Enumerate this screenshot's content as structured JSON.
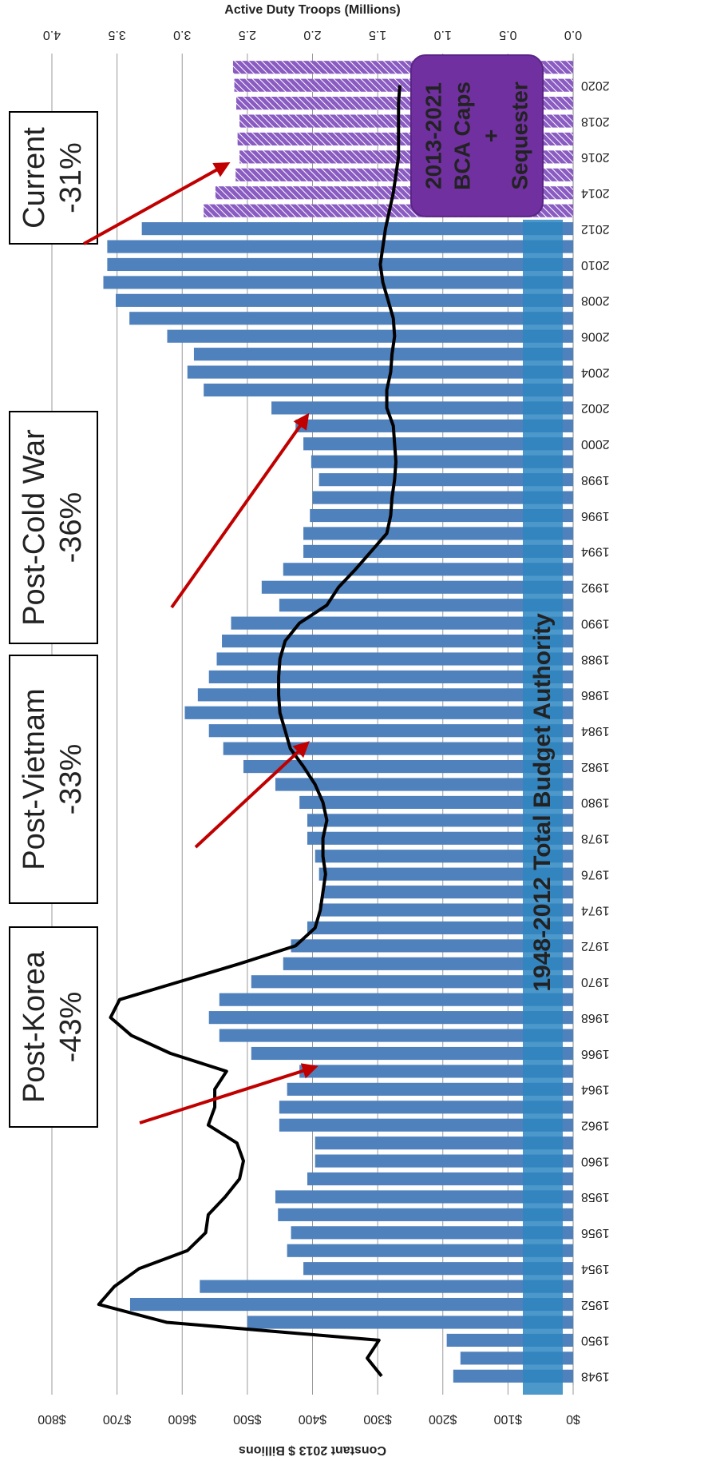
{
  "chart_data": {
    "type": "bar",
    "y_label": "Constant 2013 $ Billions",
    "y2_label": "Active Duty Troops (Millions)",
    "categories": [
      "1948",
      null,
      "1950",
      null,
      "1952",
      null,
      "1954",
      null,
      "1956",
      null,
      "1958",
      null,
      "1960",
      null,
      "1962",
      null,
      "1964",
      null,
      "1966",
      null,
      "1968",
      null,
      "1970",
      null,
      "1972",
      null,
      "1974",
      null,
      "1976",
      null,
      "1978",
      null,
      "1980",
      null,
      "1982",
      null,
      "1984",
      null,
      "1986",
      null,
      "1988",
      null,
      "1990",
      null,
      "1992",
      null,
      "1994",
      null,
      "1996",
      null,
      "1998",
      null,
      "2000",
      null,
      "2002",
      null,
      "2004",
      null,
      "2006",
      null,
      "2008",
      null,
      "2010",
      null,
      "2012",
      null,
      "2014",
      null,
      "2016",
      null,
      "2018",
      null,
      "2020",
      null
    ],
    "series": [
      {
        "name": "1948-2012 Total Budget Authority",
        "color": "#4f81bd",
        "values": [
          184,
          173,
          194,
          500,
          680,
          573,
          414,
          439,
          433,
          453,
          457,
          408,
          396,
          396,
          451,
          451,
          439,
          420,
          494,
          543,
          559,
          543,
          494,
          445,
          433,
          408,
          390,
          383,
          390,
          396,
          408,
          408,
          420,
          457,
          506,
          537,
          559,
          596,
          576,
          559,
          547,
          539,
          525,
          451,
          478,
          445,
          414,
          414,
          404,
          400,
          390,
          402,
          414,
          426,
          463,
          567,
          592,
          582,
          623,
          681,
          702,
          721,
          715,
          715,
          662,
          null,
          null,
          null,
          null,
          null,
          null,
          null,
          null,
          null
        ]
      },
      {
        "name_lines": [
          "2013-2021",
          "BCA Caps",
          "+",
          "Sequester"
        ],
        "color": "#8a5cc2",
        "hatched": true,
        "values": [
          null,
          null,
          null,
          null,
          null,
          null,
          null,
          null,
          null,
          null,
          null,
          null,
          null,
          null,
          null,
          null,
          null,
          null,
          null,
          null,
          null,
          null,
          null,
          null,
          null,
          null,
          null,
          null,
          null,
          null,
          null,
          null,
          null,
          null,
          null,
          null,
          null,
          null,
          null,
          null,
          null,
          null,
          null,
          null,
          null,
          null,
          null,
          null,
          null,
          null,
          null,
          null,
          null,
          null,
          null,
          null,
          null,
          null,
          null,
          null,
          null,
          null,
          null,
          null,
          null,
          567,
          549,
          518,
          512,
          515,
          512,
          517,
          520,
          522
        ]
      },
      {
        "type": "line",
        "axis": "y2",
        "color": "#000000",
        "values": [
          1.47,
          1.58,
          1.49,
          3.12,
          3.64,
          3.52,
          3.33,
          2.96,
          2.82,
          2.8,
          2.67,
          2.56,
          2.53,
          2.58,
          2.8,
          2.75,
          2.75,
          2.66,
          3.09,
          3.39,
          3.55,
          3.48,
          3.02,
          2.56,
          2.13,
          1.98,
          1.94,
          1.92,
          1.9,
          1.92,
          1.92,
          1.89,
          1.92,
          1.98,
          2.07,
          2.17,
          2.21,
          2.25,
          2.26,
          2.26,
          2.25,
          2.21,
          2.1,
          1.89,
          1.8,
          1.67,
          1.55,
          1.43,
          1.4,
          1.39,
          1.37,
          1.36,
          1.37,
          1.38,
          1.43,
          1.43,
          1.4,
          1.39,
          1.37,
          1.38,
          1.42,
          1.46,
          1.48,
          1.46,
          1.44,
          1.41,
          1.38,
          1.36,
          1.34,
          1.34,
          1.34,
          1.34,
          1.33,
          null
        ]
      }
    ],
    "ylim": [
      0,
      800
    ],
    "yticks": [
      {
        "value": 0,
        "label": "$0"
      },
      {
        "value": 100,
        "label": "$100"
      },
      {
        "value": 200,
        "label": "$200"
      },
      {
        "value": 300,
        "label": "$300"
      },
      {
        "value": 400,
        "label": "$400"
      },
      {
        "value": 500,
        "label": "$500"
      },
      {
        "value": 600,
        "label": "$600"
      },
      {
        "value": 700,
        "label": "$700"
      },
      {
        "value": 800,
        "label": "$800"
      }
    ],
    "y2lim": [
      0,
      4
    ],
    "y2ticks": [
      {
        "value": 0,
        "label": "0.0"
      },
      0.5,
      {
        "value": 1,
        "label": "1.0"
      },
      1.5,
      {
        "value": 2,
        "label": "2.0"
      },
      2.5,
      {
        "value": 3,
        "label": "3.0"
      },
      3.5,
      {
        "value": 4,
        "label": "4.0"
      }
    ],
    "grid": true,
    "callouts": [
      {
        "lines": [
          "Post-Korea",
          "-43%"
        ]
      },
      {
        "lines": [
          "Post-Vietnam",
          "-33%"
        ]
      },
      {
        "lines": [
          "Post-Cold War",
          "-36%"
        ]
      },
      {
        "lines": [
          "Current",
          "-31%"
        ]
      }
    ]
  }
}
